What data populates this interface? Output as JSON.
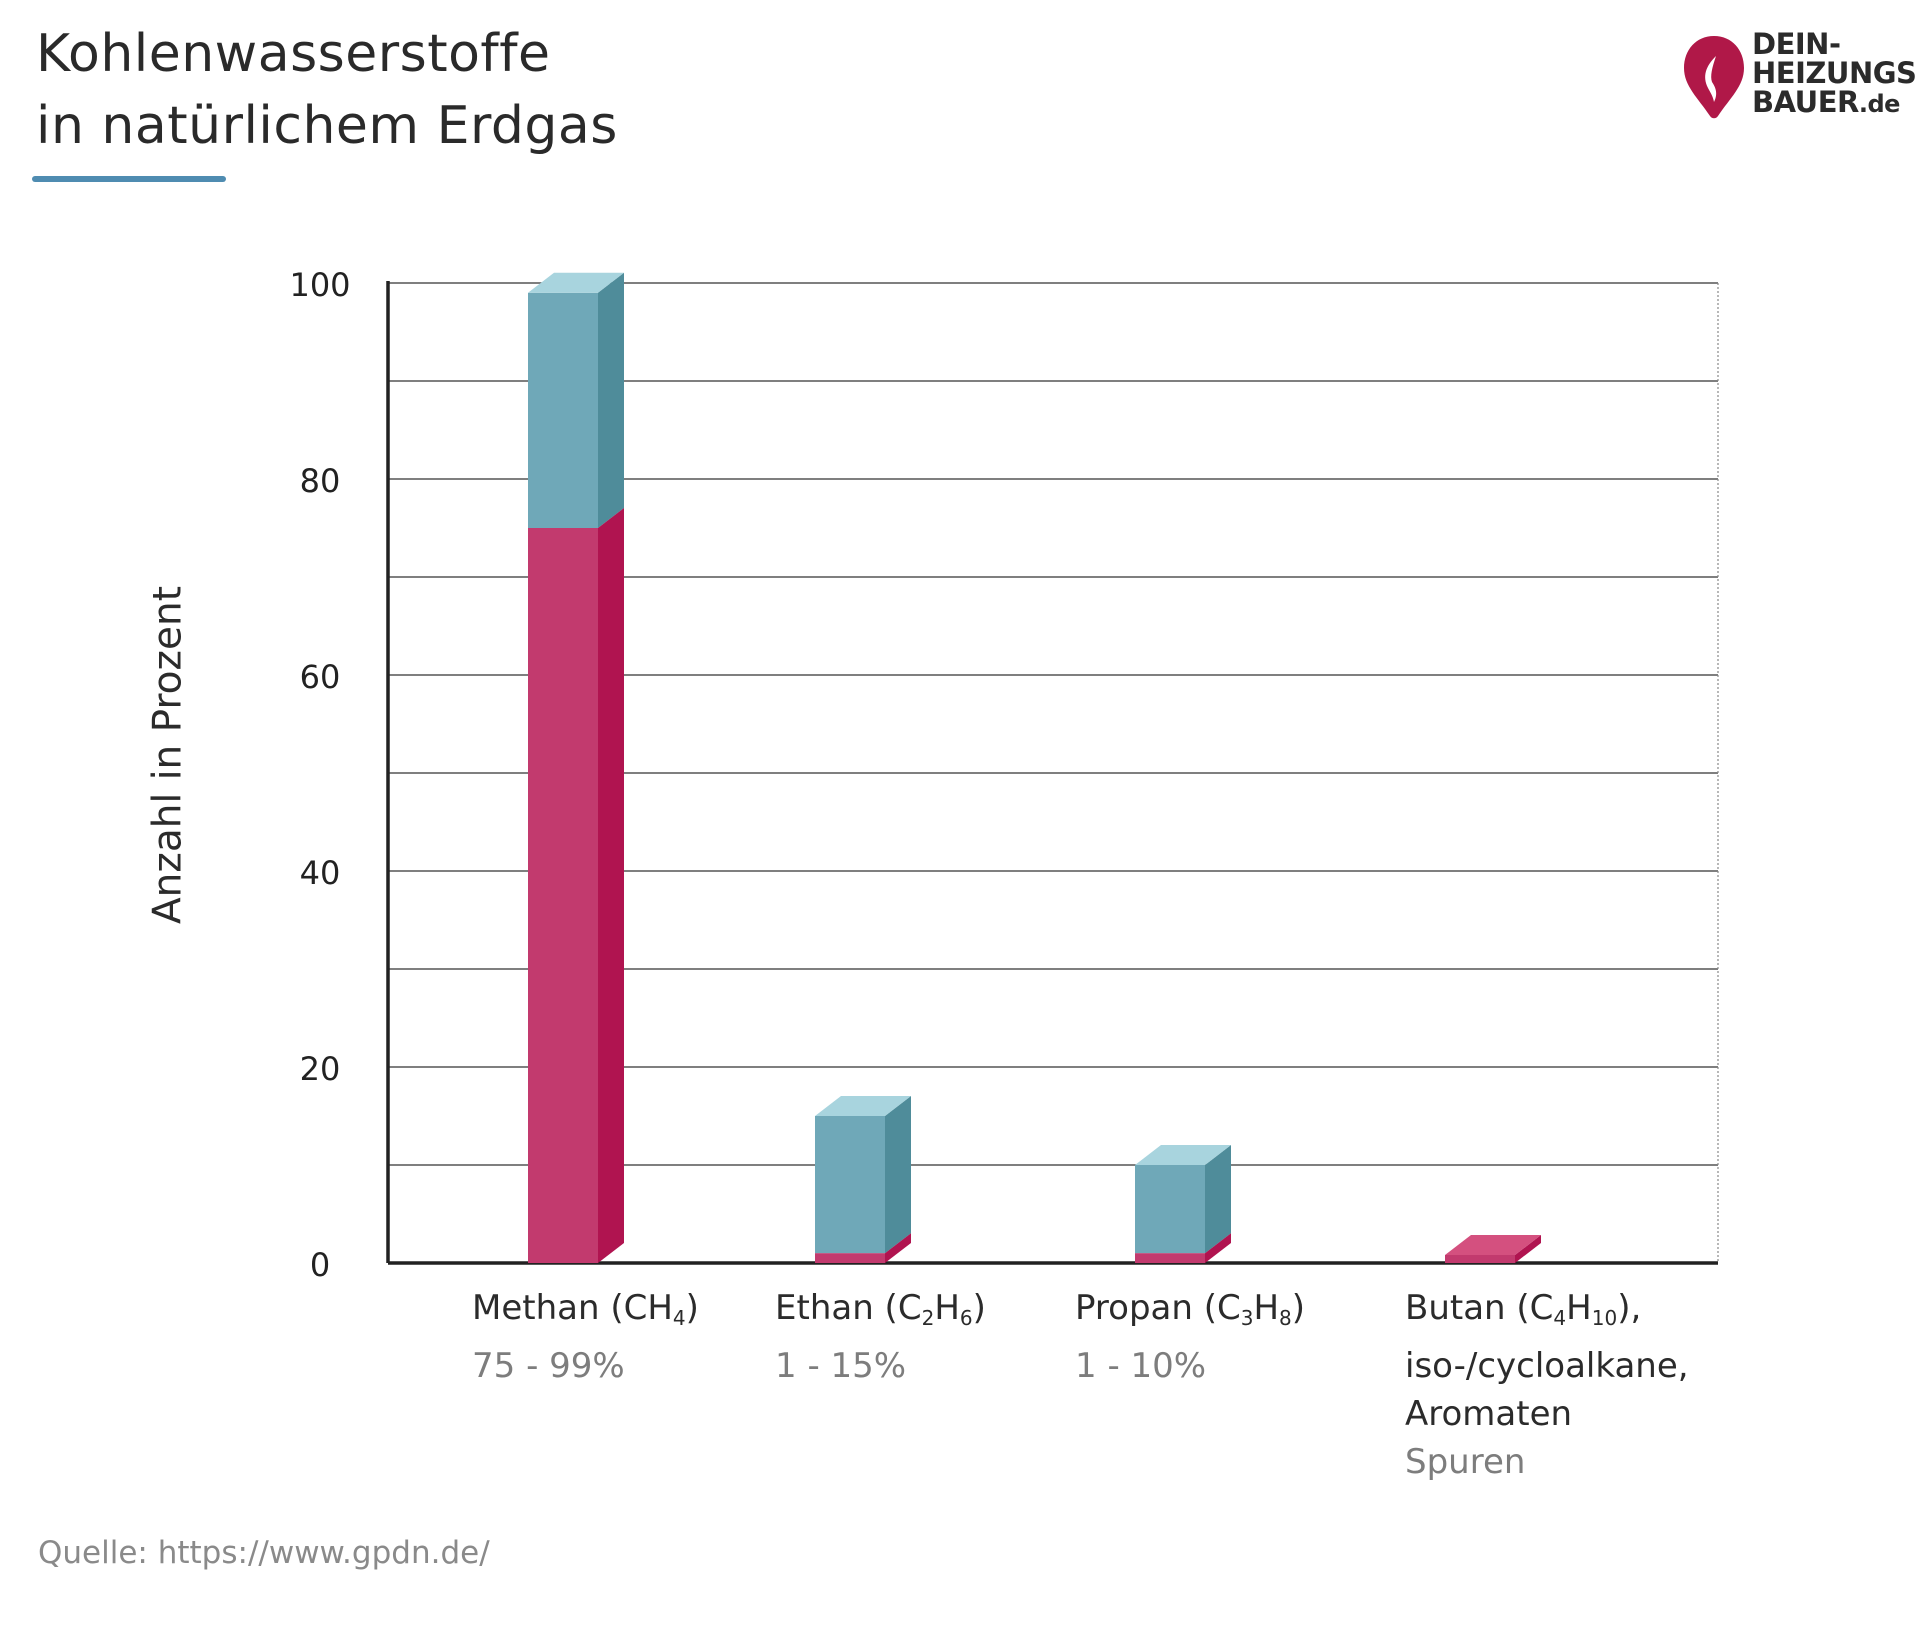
{
  "title_line1": "Kohlenwasserstoffe",
  "title_line2": "in natürlichem Erdgas",
  "logo": {
    "line1": "DEIN-",
    "line2": "HEIZUNGS",
    "line3": "BAUER",
    "line3_suffix": ".de",
    "color": "#b01848"
  },
  "source": "Quelle: https://www.gpdn.de/",
  "colors": {
    "teal": "#6fa8b8",
    "teal_side": "#4f8c9a",
    "teal_top": "#a8d4de",
    "pink": "#c23a6e",
    "pink_side": "#b01450",
    "pink_top": "#d4507f",
    "accent": "#4f8cb1"
  },
  "chart_data": {
    "type": "bar",
    "title": "Kohlenwasserstoffe in natürlichem Erdgas",
    "ylabel": "Anzahl in Prozent",
    "xlabel": "",
    "ylim": [
      0,
      100
    ],
    "yticks": [
      0,
      20,
      40,
      60,
      80,
      100
    ],
    "yticks_labels": [
      "0",
      "20",
      "40",
      "60",
      "80",
      "100"
    ],
    "grid": true,
    "categories": [
      {
        "name": "Methan",
        "formula_parts": [
          "CH",
          "4",
          ")"
        ],
        "range": "75 - 99%",
        "min": 75,
        "max": 99
      },
      {
        "name": "Ethan",
        "formula_parts": [
          "C",
          "2",
          "H",
          "6",
          ")"
        ],
        "range": "1 - 15%",
        "min": 1,
        "max": 15
      },
      {
        "name": "Propan",
        "formula_parts": [
          "C",
          "3",
          "H",
          "8",
          ")"
        ],
        "range": "1 - 10%",
        "min": 1,
        "max": 10
      },
      {
        "name": "Butan",
        "formula_parts": [
          "C",
          "4",
          "H",
          "10",
          "),"
        ],
        "extra_lines": [
          "iso-/cycloalkane,",
          "Aromaten"
        ],
        "range": "Spuren",
        "min": 0.5,
        "max": 0.5
      }
    ]
  }
}
